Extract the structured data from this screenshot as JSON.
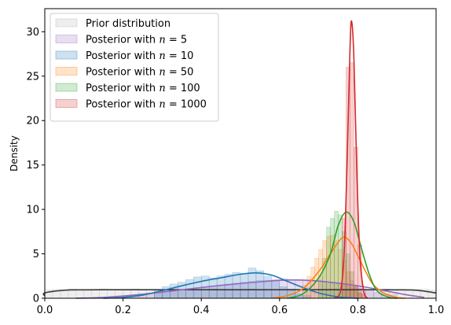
{
  "chart_data": {
    "type": "area",
    "title": "",
    "xlabel": "",
    "ylabel": "Density",
    "xlim": [
      0.0,
      1.0
    ],
    "ylim": [
      0,
      32.6
    ],
    "xticks": [
      "0.0",
      "0.2",
      "0.4",
      "0.6",
      "0.8",
      "1.0"
    ],
    "yticks": [
      "0",
      "5",
      "10",
      "15",
      "20",
      "25",
      "30"
    ],
    "legend": {
      "location": "upper-left"
    },
    "series": [
      {
        "name": "Prior distribution",
        "legend_prefix": "Prior distribution",
        "legend_n": "",
        "legend_suffix": "",
        "fill_color": "#b0b0b0",
        "line_color": "#3a3a3a",
        "kde": [
          [
            -0.05,
            0.25
          ],
          [
            0.0,
            0.6
          ],
          [
            0.05,
            0.9
          ],
          [
            0.1,
            0.95
          ],
          [
            0.2,
            0.96
          ],
          [
            0.3,
            0.96
          ],
          [
            0.5,
            0.96
          ],
          [
            0.7,
            0.96
          ],
          [
            0.8,
            0.96
          ],
          [
            0.9,
            0.95
          ],
          [
            0.95,
            0.9
          ],
          [
            1.0,
            0.6
          ]
        ],
        "hist": {
          "start": 0.0,
          "width": 0.02,
          "heights": [
            0.95,
            1.0,
            0.9,
            1.05,
            0.95,
            0.9,
            1.0,
            1.05,
            0.95,
            1.0,
            0.9,
            1.05,
            1.0,
            0.95,
            0.9,
            1.0,
            1.05,
            0.95,
            1.0,
            0.9,
            0.95,
            1.05,
            1.0,
            0.9,
            1.0,
            0.95,
            1.05,
            0.9,
            1.0,
            0.95,
            1.0,
            1.05,
            0.9,
            0.95,
            1.0,
            1.0,
            0.9,
            1.05,
            0.95,
            1.0,
            0.95,
            1.0,
            0.9,
            1.05,
            1.0,
            0.95,
            0.9,
            1.0,
            1.05,
            0.95
          ]
        }
      },
      {
        "name": "Posterior with n = 5",
        "legend_prefix": "Posterior with ",
        "legend_n": "n",
        "legend_suffix": " = 5",
        "fill_color": "#9467bd",
        "line_color": "#9467bd",
        "kde": [
          [
            0.08,
            0.0
          ],
          [
            0.15,
            0.1
          ],
          [
            0.25,
            0.45
          ],
          [
            0.35,
            0.95
          ],
          [
            0.45,
            1.45
          ],
          [
            0.55,
            1.85
          ],
          [
            0.62,
            2.05
          ],
          [
            0.68,
            2.0
          ],
          [
            0.75,
            1.7
          ],
          [
            0.82,
            1.25
          ],
          [
            0.88,
            0.75
          ],
          [
            0.93,
            0.35
          ],
          [
            0.97,
            0.1
          ]
        ],
        "hist": {
          "start": 0.2,
          "width": 0.02,
          "heights": [
            0.3,
            0.4,
            0.5,
            0.6,
            0.7,
            0.8,
            0.9,
            1.0,
            1.1,
            1.2,
            1.3,
            1.4,
            1.5,
            1.6,
            1.7,
            1.8,
            1.9,
            2.0,
            2.0,
            2.1,
            2.2,
            2.1,
            2.0,
            2.0,
            1.9,
            1.8,
            1.7,
            1.6,
            1.5,
            1.3,
            1.1,
            0.9,
            0.7,
            0.5,
            0.4
          ]
        }
      },
      {
        "name": "Posterior with n = 10",
        "legend_prefix": "Posterior with ",
        "legend_n": "n",
        "legend_suffix": " = 10",
        "fill_color": "#1f77b4",
        "line_color": "#1f77b4",
        "kde": [
          [
            0.15,
            0.0
          ],
          [
            0.2,
            0.1
          ],
          [
            0.25,
            0.35
          ],
          [
            0.3,
            0.85
          ],
          [
            0.35,
            1.4
          ],
          [
            0.4,
            1.9
          ],
          [
            0.45,
            2.3
          ],
          [
            0.5,
            2.7
          ],
          [
            0.54,
            2.85
          ],
          [
            0.58,
            2.6
          ],
          [
            0.62,
            1.9
          ],
          [
            0.66,
            1.2
          ],
          [
            0.7,
            0.6
          ],
          [
            0.75,
            0.15
          ],
          [
            0.8,
            0.0
          ]
        ],
        "hist": {
          "start": 0.28,
          "width": 0.02,
          "heights": [
            0.9,
            1.3,
            1.6,
            1.8,
            2.1,
            2.4,
            2.5,
            2.3,
            2.5,
            2.7,
            2.9,
            2.8,
            3.4,
            3.1,
            2.5,
            2.0,
            1.3,
            0.9,
            0.5,
            0.3
          ]
        }
      },
      {
        "name": "Posterior with n = 50",
        "legend_prefix": "Posterior with ",
        "legend_n": "n",
        "legend_suffix": " = 50",
        "fill_color": "#ff7f0e",
        "line_color": "#ff7f0e",
        "kde": [
          [
            0.58,
            0.0
          ],
          [
            0.62,
            0.3
          ],
          [
            0.66,
            1.1
          ],
          [
            0.7,
            3.0
          ],
          [
            0.73,
            5.0
          ],
          [
            0.76,
            6.8
          ],
          [
            0.78,
            6.4
          ],
          [
            0.8,
            4.8
          ],
          [
            0.82,
            3.0
          ],
          [
            0.84,
            1.5
          ],
          [
            0.87,
            0.5
          ],
          [
            0.9,
            0.1
          ],
          [
            0.92,
            0.0
          ]
        ],
        "hist": {
          "start": 0.66,
          "width": 0.01,
          "heights": [
            1.5,
            2.5,
            3.5,
            4.5,
            5.5,
            6.5,
            7.0,
            7.1,
            6.5,
            5.5,
            4.2,
            3.0,
            2.0,
            1.2,
            0.6,
            0.3
          ]
        }
      },
      {
        "name": "Posterior with n = 100",
        "legend_prefix": "Posterior with ",
        "legend_n": "n",
        "legend_suffix": " = 100",
        "fill_color": "#2ca02c",
        "line_color": "#2ca02c",
        "kde": [
          [
            0.62,
            0.0
          ],
          [
            0.66,
            0.5
          ],
          [
            0.7,
            2.3
          ],
          [
            0.73,
            5.0
          ],
          [
            0.75,
            8.2
          ],
          [
            0.77,
            9.7
          ],
          [
            0.79,
            8.6
          ],
          [
            0.81,
            5.5
          ],
          [
            0.83,
            2.6
          ],
          [
            0.85,
            0.8
          ],
          [
            0.88,
            0.1
          ],
          [
            0.9,
            0.0
          ]
        ],
        "hist": {
          "start": 0.7,
          "width": 0.01,
          "heights": [
            2.5,
            4.5,
            8.0,
            9.0,
            9.8,
            9.4,
            7.5,
            5.0,
            3.0,
            1.5,
            0.6
          ]
        }
      },
      {
        "name": "Posterior with n = 1000",
        "legend_prefix": "Posterior with ",
        "legend_n": "n",
        "legend_suffix": " = 1000",
        "fill_color": "#d62728",
        "line_color": "#d62728",
        "kde": [
          [
            0.74,
            0.0
          ],
          [
            0.755,
            0.6
          ],
          [
            0.765,
            5.0
          ],
          [
            0.773,
            16.0
          ],
          [
            0.78,
            28.0
          ],
          [
            0.784,
            31.2
          ],
          [
            0.79,
            27.0
          ],
          [
            0.797,
            15.0
          ],
          [
            0.805,
            5.0
          ],
          [
            0.815,
            0.8
          ],
          [
            0.825,
            0.0
          ]
        ],
        "hist": {
          "start": 0.76,
          "width": 0.01,
          "heights": [
            9.0,
            26.0,
            26.5,
            17.0,
            6.0,
            0.5
          ]
        }
      }
    ]
  }
}
